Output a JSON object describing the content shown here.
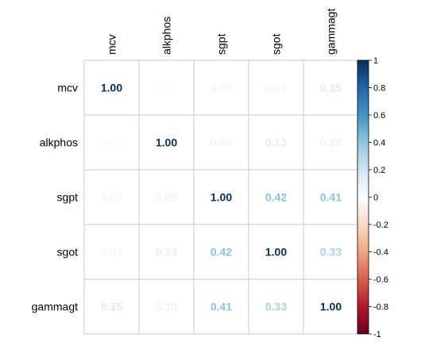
{
  "chart_data": {
    "type": "heatmap",
    "title": "",
    "variables": [
      "mcv",
      "alkphos",
      "sgpt",
      "sgot",
      "gammagt"
    ],
    "matrix": [
      [
        1.0,
        0.03,
        0.07,
        0.07,
        0.15
      ],
      [
        0.03,
        1.0,
        0.09,
        0.13,
        0.1
      ],
      [
        0.07,
        0.09,
        1.0,
        0.42,
        0.41
      ],
      [
        0.07,
        0.13,
        0.42,
        1.0,
        0.33
      ],
      [
        0.15,
        0.1,
        0.41,
        0.33,
        1.0
      ]
    ],
    "colorbar": {
      "range": [
        -1,
        1
      ],
      "ticks": [
        "1",
        "0.8",
        "0.6",
        "0.4",
        "0.2",
        "0",
        "-0.2",
        "-0.4",
        "-0.6",
        "-0.8",
        "-1"
      ],
      "colors": [
        "#67001F",
        "#B2182B",
        "#D6604D",
        "#F4A582",
        "#FDDBC7",
        "#FFFFFF",
        "#D1E5F0",
        "#92C5DE",
        "#4393C3",
        "#2166AC",
        "#053061"
      ]
    },
    "grid": true
  }
}
